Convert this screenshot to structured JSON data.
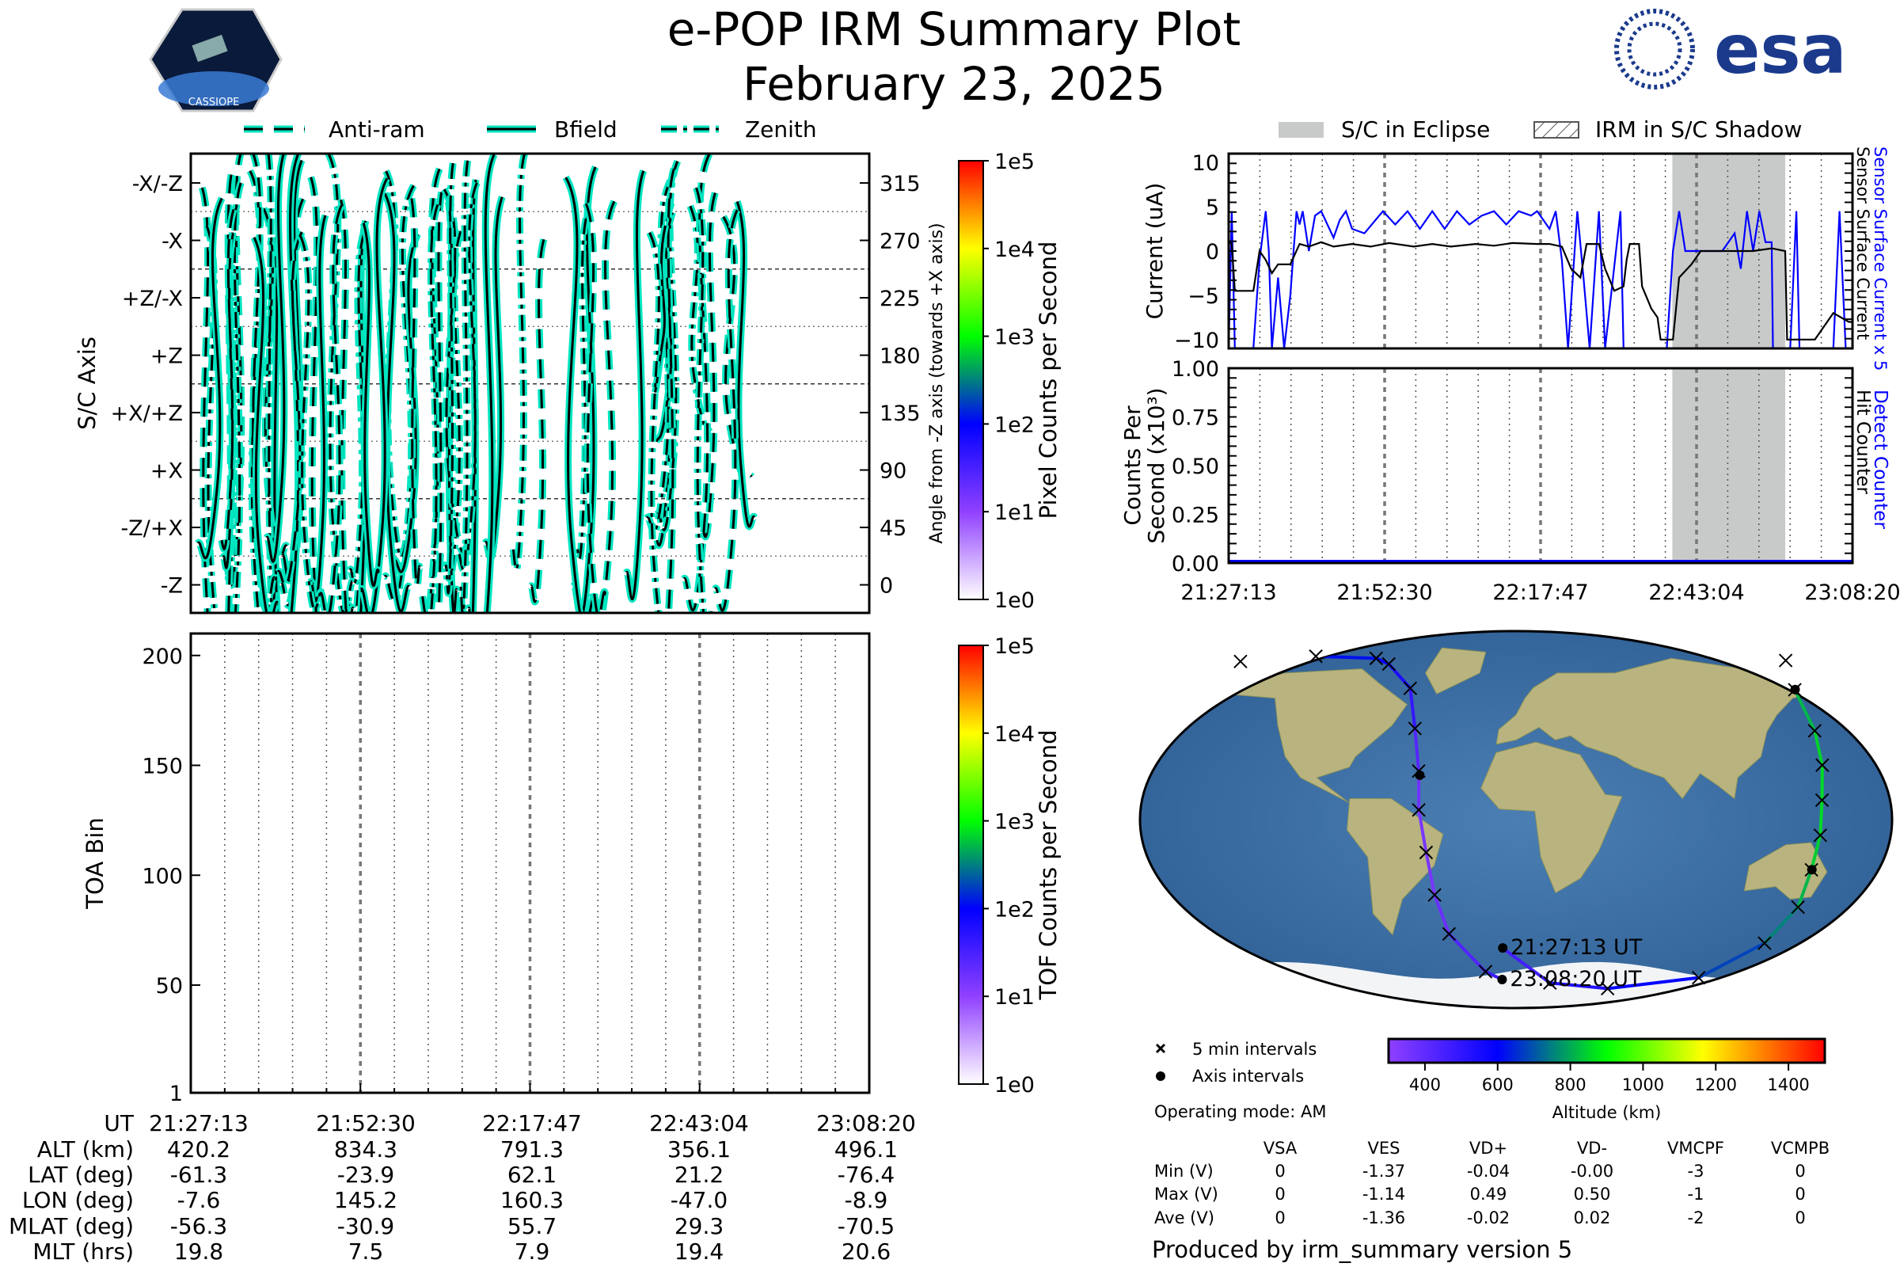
{
  "header": {
    "title": "e-POP IRM Summary Plot",
    "date": "February 23, 2025",
    "left_logo_text": "CASSIOPE",
    "right_logo_text": "esa"
  },
  "colors": {
    "trace_outline": "#00e5c0",
    "blue_series": "#0000ff",
    "eclipse_fill": "#c8cac9"
  },
  "chart_data": [
    {
      "id": "sc_axis",
      "type": "line",
      "legend": [
        "Anti-ram",
        "Bfield",
        "Zenith"
      ],
      "ylabel": "S/C Axis",
      "y_axis_labels": [
        "-X/-Z",
        "-X",
        "+Z/-X",
        "+Z",
        "+X/+Z",
        "+X",
        "-Z/+X",
        "-Z"
      ],
      "y2label": "Angle from -Z axis (towards +X axis)",
      "y2_ticks": [
        315,
        270,
        225,
        180,
        135,
        90,
        45,
        0
      ],
      "ylim": [
        -22,
        338
      ],
      "colorbar_label": "Pixel Counts per Second",
      "colorbar_ticks": [
        "1e5",
        "1e4",
        "1e3",
        "1e2",
        "1e1",
        "1e0"
      ]
    },
    {
      "id": "toa",
      "type": "heatmap",
      "ylabel": "TOA Bin",
      "y_ticks": [
        200,
        150,
        100,
        50,
        1
      ],
      "ylim": [
        1,
        210
      ],
      "colorbar_label": "TOF Counts per Second",
      "colorbar_ticks": [
        "1e5",
        "1e4",
        "1e3",
        "1e2",
        "1e1",
        "1e0"
      ]
    },
    {
      "id": "current",
      "type": "line",
      "ylabel": "Current (uA)",
      "y_ticks": [
        10,
        5,
        0,
        -5,
        -10
      ],
      "ylim": [
        -11,
        11
      ],
      "xlim_minutes": [
        0,
        101.1
      ],
      "legend": [
        "S/C in Eclipse",
        "IRM in S/C Shadow"
      ],
      "eclipse_minutes": [
        71.9,
        90.2
      ],
      "series": [
        {
          "name": "Sensor Surface Current",
          "color": "#000000",
          "t": [
            0,
            0.5,
            1,
            4,
            5,
            6,
            7,
            8,
            10,
            11.5,
            13,
            15,
            17,
            20,
            23,
            26,
            30,
            33,
            36,
            40,
            43,
            46,
            50,
            52,
            54,
            55.5,
            57,
            58,
            60,
            61,
            62.5,
            64,
            64.5,
            65,
            66.5,
            67,
            68.5,
            69.5,
            70,
            72,
            73,
            75,
            76.5,
            80,
            85,
            88,
            90.2,
            90.5,
            95,
            97,
            98,
            100.5,
            101.1
          ],
          "v": [
            1,
            0.8,
            -4.5,
            -4.5,
            0,
            -1,
            -2.5,
            -1.5,
            -1.5,
            0.8,
            0.5,
            1,
            0.5,
            0.8,
            0.5,
            0.9,
            0.5,
            0.8,
            0.5,
            0.8,
            0.6,
            0.9,
            0.8,
            0.8,
            0.5,
            -2,
            -3,
            0.8,
            0.8,
            -2,
            -4.5,
            -4,
            -1,
            0.8,
            0.8,
            -4,
            -6.5,
            -7.5,
            -10,
            -10,
            -3,
            -1.5,
            0,
            0,
            0,
            0.3,
            0,
            -10,
            -10,
            -8,
            -7,
            -8,
            -8
          ]
        },
        {
          "name": "Sensor Surface Current x 5",
          "color": "#0000ff",
          "t": [
            0,
            0.5,
            1,
            4,
            5,
            6,
            6.5,
            7,
            8,
            9,
            10,
            11,
            11.5,
            12,
            13,
            14,
            15,
            16,
            17,
            18,
            19,
            20,
            22,
            25,
            27,
            29,
            31,
            33,
            35,
            37,
            39,
            41,
            43,
            45,
            47,
            49,
            50,
            52,
            53,
            54,
            55,
            56.5,
            57.5,
            58.5,
            60,
            61,
            63.5,
            64,
            70,
            71,
            72,
            73,
            74,
            76,
            80,
            82,
            83,
            84,
            85,
            86,
            87,
            88,
            88.2,
            91,
            92,
            92.5,
            98,
            99,
            100,
            101.1
          ],
          "v": [
            -11,
            4.5,
            -11,
            -11,
            -1,
            4.5,
            0,
            -11,
            -3,
            -11,
            -5,
            4.5,
            3,
            4.5,
            0,
            4,
            4.5,
            3,
            1.5,
            3.5,
            4.5,
            2.5,
            2,
            4.5,
            3,
            4.5,
            2.5,
            4.5,
            2.5,
            4.5,
            3,
            4,
            4.5,
            3,
            4.5,
            4,
            4.5,
            2.5,
            4.5,
            -1,
            -11,
            4.5,
            -3,
            -11,
            4.5,
            -11,
            4.5,
            -11,
            -11,
            -11,
            0,
            4.5,
            0,
            0,
            0,
            2,
            -2,
            4.5,
            0,
            4.5,
            1,
            1,
            -11,
            -11,
            4.5,
            -11,
            -11,
            4.5,
            -11,
            -11
          ]
        }
      ],
      "right_labels": [
        "Sensor Surface Current x 5",
        "Sensor Surface Current"
      ]
    },
    {
      "id": "counts",
      "type": "line",
      "ylabel_lines": [
        "Counts Per",
        "Second (x10³)"
      ],
      "y_ticks": [
        "1.00",
        "0.75",
        "0.50",
        "0.25",
        "0.00"
      ],
      "ylim": [
        0,
        1
      ],
      "series": [
        {
          "name": "Detect Counter",
          "color": "#0000ff",
          "t": [
            0,
            101.1
          ],
          "v": [
            0,
            0
          ]
        }
      ],
      "right_labels": [
        "Detect Counter",
        "Hit Counter"
      ]
    },
    {
      "id": "orbit_map",
      "type": "scatter",
      "track": [
        {
          "lon": -8.3,
          "lat": -61,
          "alt": 420
        },
        {
          "lon": 22,
          "lat": -78,
          "alt": 500
        },
        {
          "lon": 61,
          "lat": -80.7,
          "alt": 560
        },
        {
          "lon": 116,
          "lat": -75.5,
          "alt": 640
        },
        {
          "lon": 140,
          "lat": -59,
          "alt": 720
        },
        {
          "lon": 146,
          "lat": -41.8,
          "alt": 790
        },
        {
          "lon": 145,
          "lat": -24,
          "alt": 834
        },
        {
          "lon": 146,
          "lat": -7.5,
          "alt": 850
        },
        {
          "lon": 147,
          "lat": 9.3,
          "alt": 860
        },
        {
          "lon": 151,
          "lat": 26,
          "alt": 855
        },
        {
          "lon": 155,
          "lat": 42.4,
          "alt": 840
        },
        {
          "lon": 160,
          "lat": 62,
          "alt": 791
        },
        {
          "lon": 172,
          "lat": 76,
          "alt": 750
        },
        {
          "lon": -175,
          "lat": 75.5,
          "alt": 700
        },
        {
          "lon": -130,
          "lat": 78,
          "alt": 640
        },
        {
          "lon": -90,
          "lat": 77,
          "alt": 600
        },
        {
          "lon": -80,
          "lat": 74.3,
          "alt": 570
        },
        {
          "lon": -61,
          "lat": 62.7,
          "alt": 520
        },
        {
          "lon": -52.7,
          "lat": 43.5,
          "alt": 460
        },
        {
          "lon": -47.7,
          "lat": 23.2,
          "alt": 380
        },
        {
          "lon": -46.6,
          "lat": 4.6,
          "alt": 350
        },
        {
          "lon": -43.5,
          "lat": -15.7,
          "alt": 340
        },
        {
          "lon": -41.3,
          "lat": -36,
          "alt": 350
        },
        {
          "lon": -36.8,
          "lat": -54.6,
          "alt": 400
        },
        {
          "lon": -18.9,
          "lat": -72.6,
          "alt": 460
        },
        {
          "lon": -8.9,
          "lat": -76.4,
          "alt": 496
        }
      ],
      "axis_points": [
        {
          "lon": -7.6,
          "lat": -61.3
        },
        {
          "lon": 145.2,
          "lat": -23.9
        },
        {
          "lon": 160.3,
          "lat": 62.1
        },
        {
          "lon": -47.0,
          "lat": 21.2
        },
        {
          "lon": -8.9,
          "lat": -76.4
        }
      ],
      "start_label": "21:27:13 UT",
      "end_label": "23:08:20 UT",
      "legend": [
        "5 min intervals",
        "Axis intervals"
      ],
      "colorbar_label": "Altitude (km)",
      "colorbar_ticks": [
        400,
        600,
        800,
        1000,
        1200,
        1400
      ],
      "colorbar_range": [
        300,
        1500
      ]
    }
  ],
  "time_axis": {
    "labels": [
      "21:27:13",
      "21:52:30",
      "22:17:47",
      "22:43:04",
      "23:08:20"
    ]
  },
  "ephemeris": {
    "row_labels": [
      "UT",
      "ALT (km)",
      "LAT (deg)",
      "LON (deg)",
      "MLAT (deg)",
      "MLT (hrs)"
    ],
    "columns": [
      [
        "21:27:13",
        "420.2",
        "-61.3",
        "-7.6",
        "-56.3",
        "19.8"
      ],
      [
        "21:52:30",
        "834.3",
        "-23.9",
        "145.2",
        "-30.9",
        "7.5"
      ],
      [
        "22:17:47",
        "791.3",
        "62.1",
        "160.3",
        "55.7",
        "7.9"
      ],
      [
        "22:43:04",
        "356.1",
        "21.2",
        "-47.0",
        "29.3",
        "19.4"
      ],
      [
        "23:08:20",
        "496.1",
        "-76.4",
        "-8.9",
        "-70.5",
        "20.6"
      ]
    ]
  },
  "operating_mode": "Operating mode: AM",
  "voltages": {
    "headers": [
      "VSA",
      "VES",
      "VD+",
      "VD-",
      "VMCPF",
      "VCMPB"
    ],
    "rows": [
      {
        "label": "Min (V)",
        "values": [
          "0",
          "-1.37",
          "-0.04",
          "-0.00",
          "-3",
          "0"
        ]
      },
      {
        "label": "Max (V)",
        "values": [
          "0",
          "-1.14",
          "0.49",
          "0.50",
          "-1",
          "0"
        ]
      },
      {
        "label": "Ave (V)",
        "values": [
          "0",
          "-1.36",
          "-0.02",
          "0.02",
          "-2",
          "0"
        ]
      }
    ]
  },
  "footer": "Produced by irm_summary version 5"
}
